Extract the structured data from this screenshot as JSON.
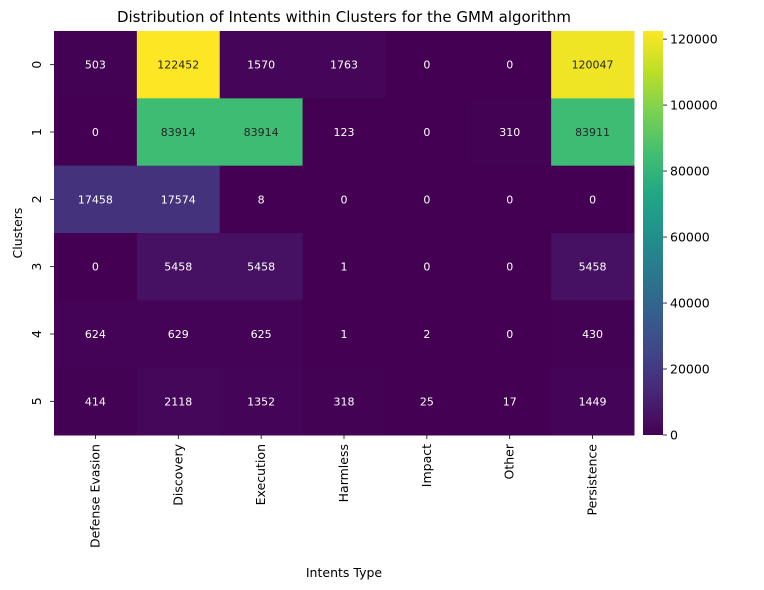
{
  "chart_data": {
    "type": "heatmap",
    "title": "Distribution of Intents within Clusters for the GMM algorithm",
    "xlabel": "Intents Type",
    "ylabel": "Clusters",
    "x_categories": [
      "Defense Evasion",
      "Discovery",
      "Execution",
      "Harmless",
      "Impact",
      "Other",
      "Persistence"
    ],
    "y_categories": [
      "0",
      "1",
      "2",
      "3",
      "4",
      "5"
    ],
    "values": [
      [
        503,
        122452,
        1570,
        1763,
        0,
        0,
        120047
      ],
      [
        0,
        83914,
        83914,
        123,
        0,
        310,
        83911
      ],
      [
        17458,
        17574,
        8,
        0,
        0,
        0,
        0
      ],
      [
        0,
        5458,
        5458,
        1,
        0,
        0,
        5458
      ],
      [
        624,
        629,
        625,
        1,
        2,
        0,
        430
      ],
      [
        414,
        2118,
        1352,
        318,
        25,
        17,
        1449
      ]
    ],
    "colormap": "viridis",
    "colorbar": {
      "min": 0,
      "max": 122452,
      "ticks": [
        0,
        20000,
        40000,
        60000,
        80000,
        100000,
        120000
      ]
    },
    "annotate": true
  }
}
